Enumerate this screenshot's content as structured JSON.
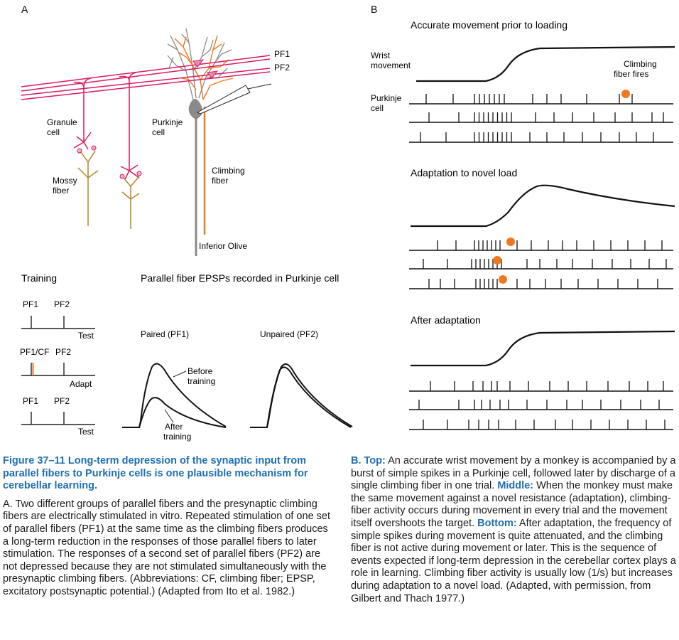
{
  "panelA": {
    "letter": "A",
    "labels": {
      "pf1": "PF1",
      "pf2": "PF2",
      "granule_cell": [
        "Granule",
        "cell"
      ],
      "purkinje_cell": [
        "Purkinje",
        "cell"
      ],
      "climbing_fiber": [
        "Climbing",
        "fiber"
      ],
      "mossy_fiber": [
        "Mossy",
        "fiber"
      ],
      "inferior_olive": "Inferior Olive"
    },
    "training": {
      "title": "Training",
      "rows": [
        {
          "left": "PF1",
          "right": "PF2",
          "tag": "Test"
        },
        {
          "left": "PF1/CF",
          "right": "PF2",
          "tag": "Adapt"
        },
        {
          "left": "PF1",
          "right": "PF2",
          "tag": "Test"
        }
      ]
    },
    "epsp": {
      "title": "Parallel fiber EPSPs recorded in Purkinje cell",
      "paired": "Paired (PF1)",
      "unpaired": "Unpaired (PF2)",
      "before": [
        "Before",
        "training"
      ],
      "after": [
        "After",
        "training"
      ]
    }
  },
  "panelB": {
    "letter": "B",
    "sections": [
      {
        "title": "Accurate movement prior to loading"
      },
      {
        "title": "Adaptation to novel load"
      },
      {
        "title": "After adaptation"
      }
    ],
    "wrist_label": [
      "Wrist",
      "movement"
    ],
    "purkinje_label": [
      "Purkinje",
      "cell"
    ],
    "climbing_label": [
      "Climbing",
      "fiber fires"
    ]
  },
  "caption_left": {
    "fig_num": "Figure 37–11",
    "title_rest": " Long-term depression of the synaptic input from parallel fibers to Purkinje cells is one plausible mechanism for cerebellar learning.",
    "body": "A. Two different groups of parallel fibers and the presynaptic climbing fibers are electrically stimulated in vitro. Repeated stimulation of one set of parallel fibers (PF1) at the same time as the climbing fibers produces a long-term reduction in the responses of those parallel fibers to later stimulation. The responses of a second set of parallel fibers (PF2) are not depressed because they are not stimulated simultaneously with the presynaptic climbing fibers. (Abbreviations: CF, climbing fiber; EPSP, excitatory postsynaptic potential.) (Adapted from Ito et al. 1982.)"
  },
  "caption_right": {
    "top_label": "B. Top:",
    "top_text": " An accurate wrist movement by a monkey is accompanied by a burst of simple spikes in a Purkinje cell, followed later by discharge of a single climbing fiber in one trial. ",
    "middle_label": "Middle:",
    "middle_text": " When the monkey must make the same movement against a novel resistance (adaptation), climbing-fiber activity occurs during movement in every trial and the movement itself overshoots the target. ",
    "bottom_label": "Bottom:",
    "bottom_text": " After adaptation, the frequency of simple spikes during movement is quite attenuated, and the climbing fiber is not active during movement or later. This is the sequence of events expected if long-term depression in the cerebellar cortex plays a role in learning. Climbing fiber activity is usually low (1/s) but increases during adaptation to a novel load. (Adapted, with permission, from Gilbert and Thach 1977.)"
  },
  "colors": {
    "parallel_fiber": "#d81b60",
    "climbing_fiber": "#f07820",
    "mossy_fiber": "#b5832a",
    "purkinje": "#8a8a8a",
    "caption_blue": "#1f6fb0"
  }
}
